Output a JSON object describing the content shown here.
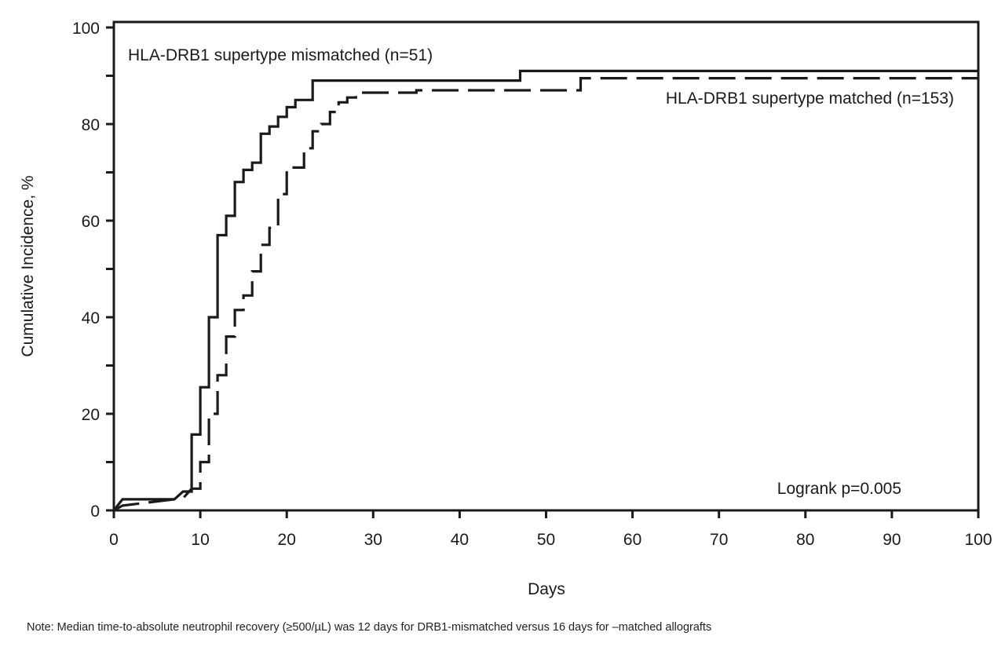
{
  "chart_data": {
    "type": "line",
    "title": "",
    "xlabel": "Days",
    "ylabel": "Cumulative Incidence, %",
    "xlim": [
      0,
      100
    ],
    "ylim": [
      0,
      100
    ],
    "xticks": [
      "0",
      "10",
      "20",
      "30",
      "40",
      "50",
      "60",
      "70",
      "80",
      "90",
      "100"
    ],
    "yticks": [
      "0",
      "20",
      "40",
      "60",
      "80",
      "100"
    ],
    "grid": false,
    "series": [
      {
        "name": "HLA-DRB1 supertype mismatched (n=51)",
        "style": "solid",
        "points": [
          [
            0,
            0
          ],
          [
            1,
            2.3
          ],
          [
            7,
            2.3
          ],
          [
            8,
            3.9
          ],
          [
            9,
            3.9
          ],
          [
            9,
            15.7
          ],
          [
            10,
            15.7
          ],
          [
            10,
            25.5
          ],
          [
            11,
            25.5
          ],
          [
            11,
            40
          ],
          [
            12,
            40
          ],
          [
            12,
            57
          ],
          [
            13,
            57
          ],
          [
            13,
            61
          ],
          [
            14,
            61
          ],
          [
            14,
            68
          ],
          [
            15,
            68
          ],
          [
            15,
            70.5
          ],
          [
            16,
            70.5
          ],
          [
            16,
            72
          ],
          [
            17,
            72
          ],
          [
            17,
            78
          ],
          [
            18,
            78
          ],
          [
            18,
            79.5
          ],
          [
            19,
            79.5
          ],
          [
            19,
            81.5
          ],
          [
            20,
            81.5
          ],
          [
            20,
            83.5
          ],
          [
            21,
            83.5
          ],
          [
            21,
            85
          ],
          [
            23,
            85
          ],
          [
            23,
            89
          ],
          [
            47,
            89
          ],
          [
            47,
            91
          ],
          [
            100,
            91
          ]
        ]
      },
      {
        "name": "HLA-DRB1 supertype matched (n=153)",
        "style": "dashed",
        "points": [
          [
            0,
            0
          ],
          [
            1,
            1
          ],
          [
            8,
            2.5
          ],
          [
            9,
            4.5
          ],
          [
            10,
            4.5
          ],
          [
            10,
            10
          ],
          [
            11,
            10
          ],
          [
            11,
            20
          ],
          [
            12,
            20
          ],
          [
            12,
            28
          ],
          [
            13,
            28
          ],
          [
            13,
            36
          ],
          [
            14,
            36
          ],
          [
            14,
            41.5
          ],
          [
            15,
            41.5
          ],
          [
            15,
            44.5
          ],
          [
            16,
            44.5
          ],
          [
            16,
            49.5
          ],
          [
            17,
            49.5
          ],
          [
            17,
            55
          ],
          [
            18,
            55
          ],
          [
            18,
            58.5
          ],
          [
            19,
            58.5
          ],
          [
            19,
            65.5
          ],
          [
            20,
            65.5
          ],
          [
            20,
            71
          ],
          [
            22,
            71
          ],
          [
            22,
            75
          ],
          [
            23,
            75
          ],
          [
            23,
            78.5
          ],
          [
            24,
            78.5
          ],
          [
            24,
            80
          ],
          [
            25,
            80
          ],
          [
            25,
            82.5
          ],
          [
            26,
            82.5
          ],
          [
            26,
            84.5
          ],
          [
            27,
            84.5
          ],
          [
            27,
            85.5
          ],
          [
            28,
            85.5
          ],
          [
            28,
            86.5
          ],
          [
            35,
            86.5
          ],
          [
            35,
            87
          ],
          [
            54,
            87
          ],
          [
            54,
            89.5
          ],
          [
            100,
            89.5
          ]
        ]
      }
    ],
    "annotations": [
      {
        "text": "HLA-DRB1 supertype mismatched (n=51)"
      },
      {
        "text": "HLA-DRB1 supertype matched (n=153)"
      },
      {
        "text": "Logrank p=0.005"
      }
    ]
  },
  "note": "Note: Median time-to-absolute neutrophil recovery (≥500/µL) was 12 days for DRB1-mismatched versus 16 days for –matched allografts"
}
